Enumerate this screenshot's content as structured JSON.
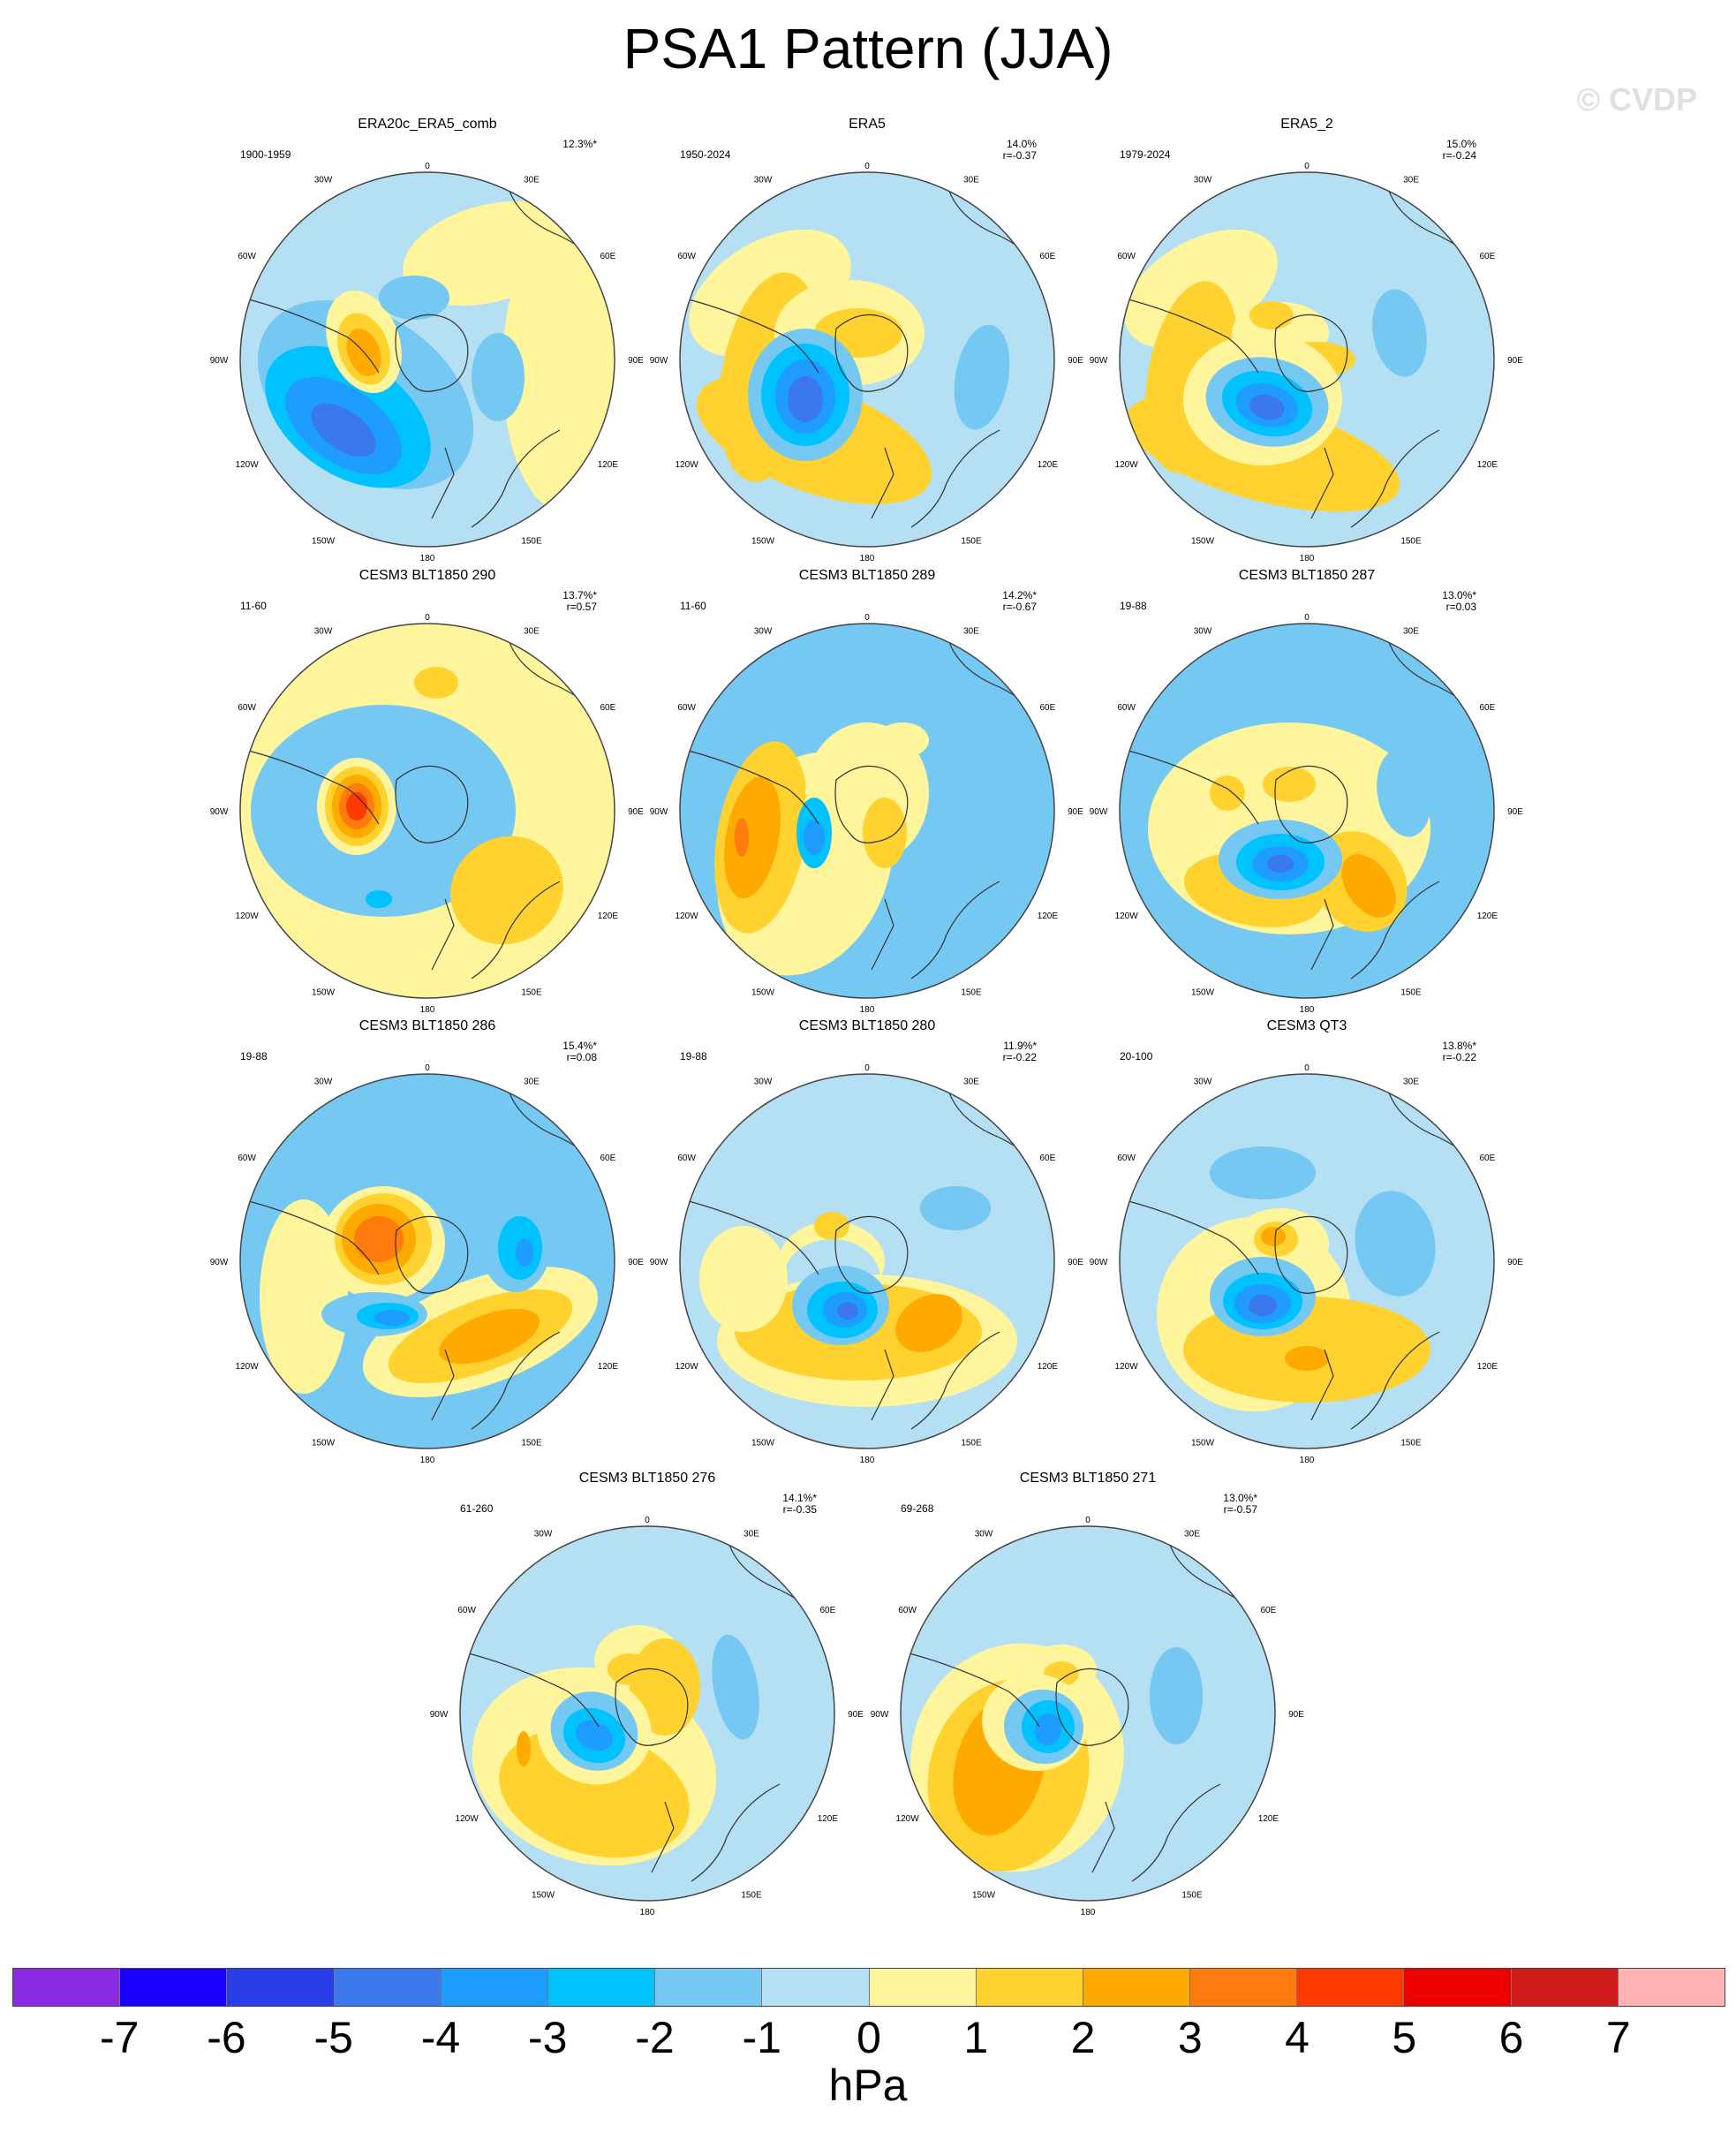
{
  "title": "PSA1 Pattern (JJA)",
  "watermark": "© CVDP",
  "units": "hPa",
  "colorbar": {
    "colors": [
      "#8a2be2",
      "#1a00ff",
      "#2a3ee8",
      "#3a78ec",
      "#1e9cff",
      "#00c2ff",
      "#74c8f2",
      "#b5dff3",
      "#fff59d",
      "#ffd230",
      "#ffaa00",
      "#ff7b0d",
      "#ff3a00",
      "#ec0000",
      "#cf1a1a",
      "#ffb3b3"
    ],
    "labels": [
      "-7",
      "-6",
      "-5",
      "-4",
      "-3",
      "-2",
      "-1",
      "0",
      "1",
      "2",
      "3",
      "4",
      "5",
      "6",
      "7"
    ]
  },
  "map_labels": {
    "top": "0",
    "bottom": "180",
    "left": [
      "30W",
      "60W",
      "90W",
      "120W",
      "150W"
    ],
    "right": [
      "30E",
      "60E",
      "90E",
      "120E",
      "150E"
    ]
  },
  "panels": [
    {
      "title": "ERA20c_ERA5_comb",
      "period": "1900-1959",
      "pct": "12.3%*",
      "r": ""
    },
    {
      "title": "ERA5",
      "period": "1950-2024",
      "pct": "14.0%",
      "r": "r=-0.37"
    },
    {
      "title": "ERA5_2",
      "period": "1979-2024",
      "pct": "15.0%",
      "r": "r=-0.24"
    },
    {
      "title": "CESM3 BLT1850 290",
      "period": "11-60",
      "pct": "13.7%*",
      "r": "r=0.57"
    },
    {
      "title": "CESM3 BLT1850 289",
      "period": "11-60",
      "pct": "14.2%*",
      "r": "r=-0.67"
    },
    {
      "title": "CESM3 BLT1850 287",
      "period": "19-88",
      "pct": "13.0%*",
      "r": "r=0.03"
    },
    {
      "title": "CESM3 BLT1850 286",
      "period": "19-88",
      "pct": "15.4%*",
      "r": "r=0.08"
    },
    {
      "title": "CESM3 BLT1850 280",
      "period": "19-88",
      "pct": "11.9%*",
      "r": "r=-0.22"
    },
    {
      "title": "CESM3 QT3",
      "period": "20-100",
      "pct": "13.8%*",
      "r": "r=-0.22"
    },
    {
      "title": "CESM3 BLT1850 276",
      "period": "61-260",
      "pct": "14.1%*",
      "r": "r=-0.35"
    },
    {
      "title": "CESM3 BLT1850 271",
      "period": "69-268",
      "pct": "13.0%*",
      "r": "r=-0.57"
    }
  ]
}
